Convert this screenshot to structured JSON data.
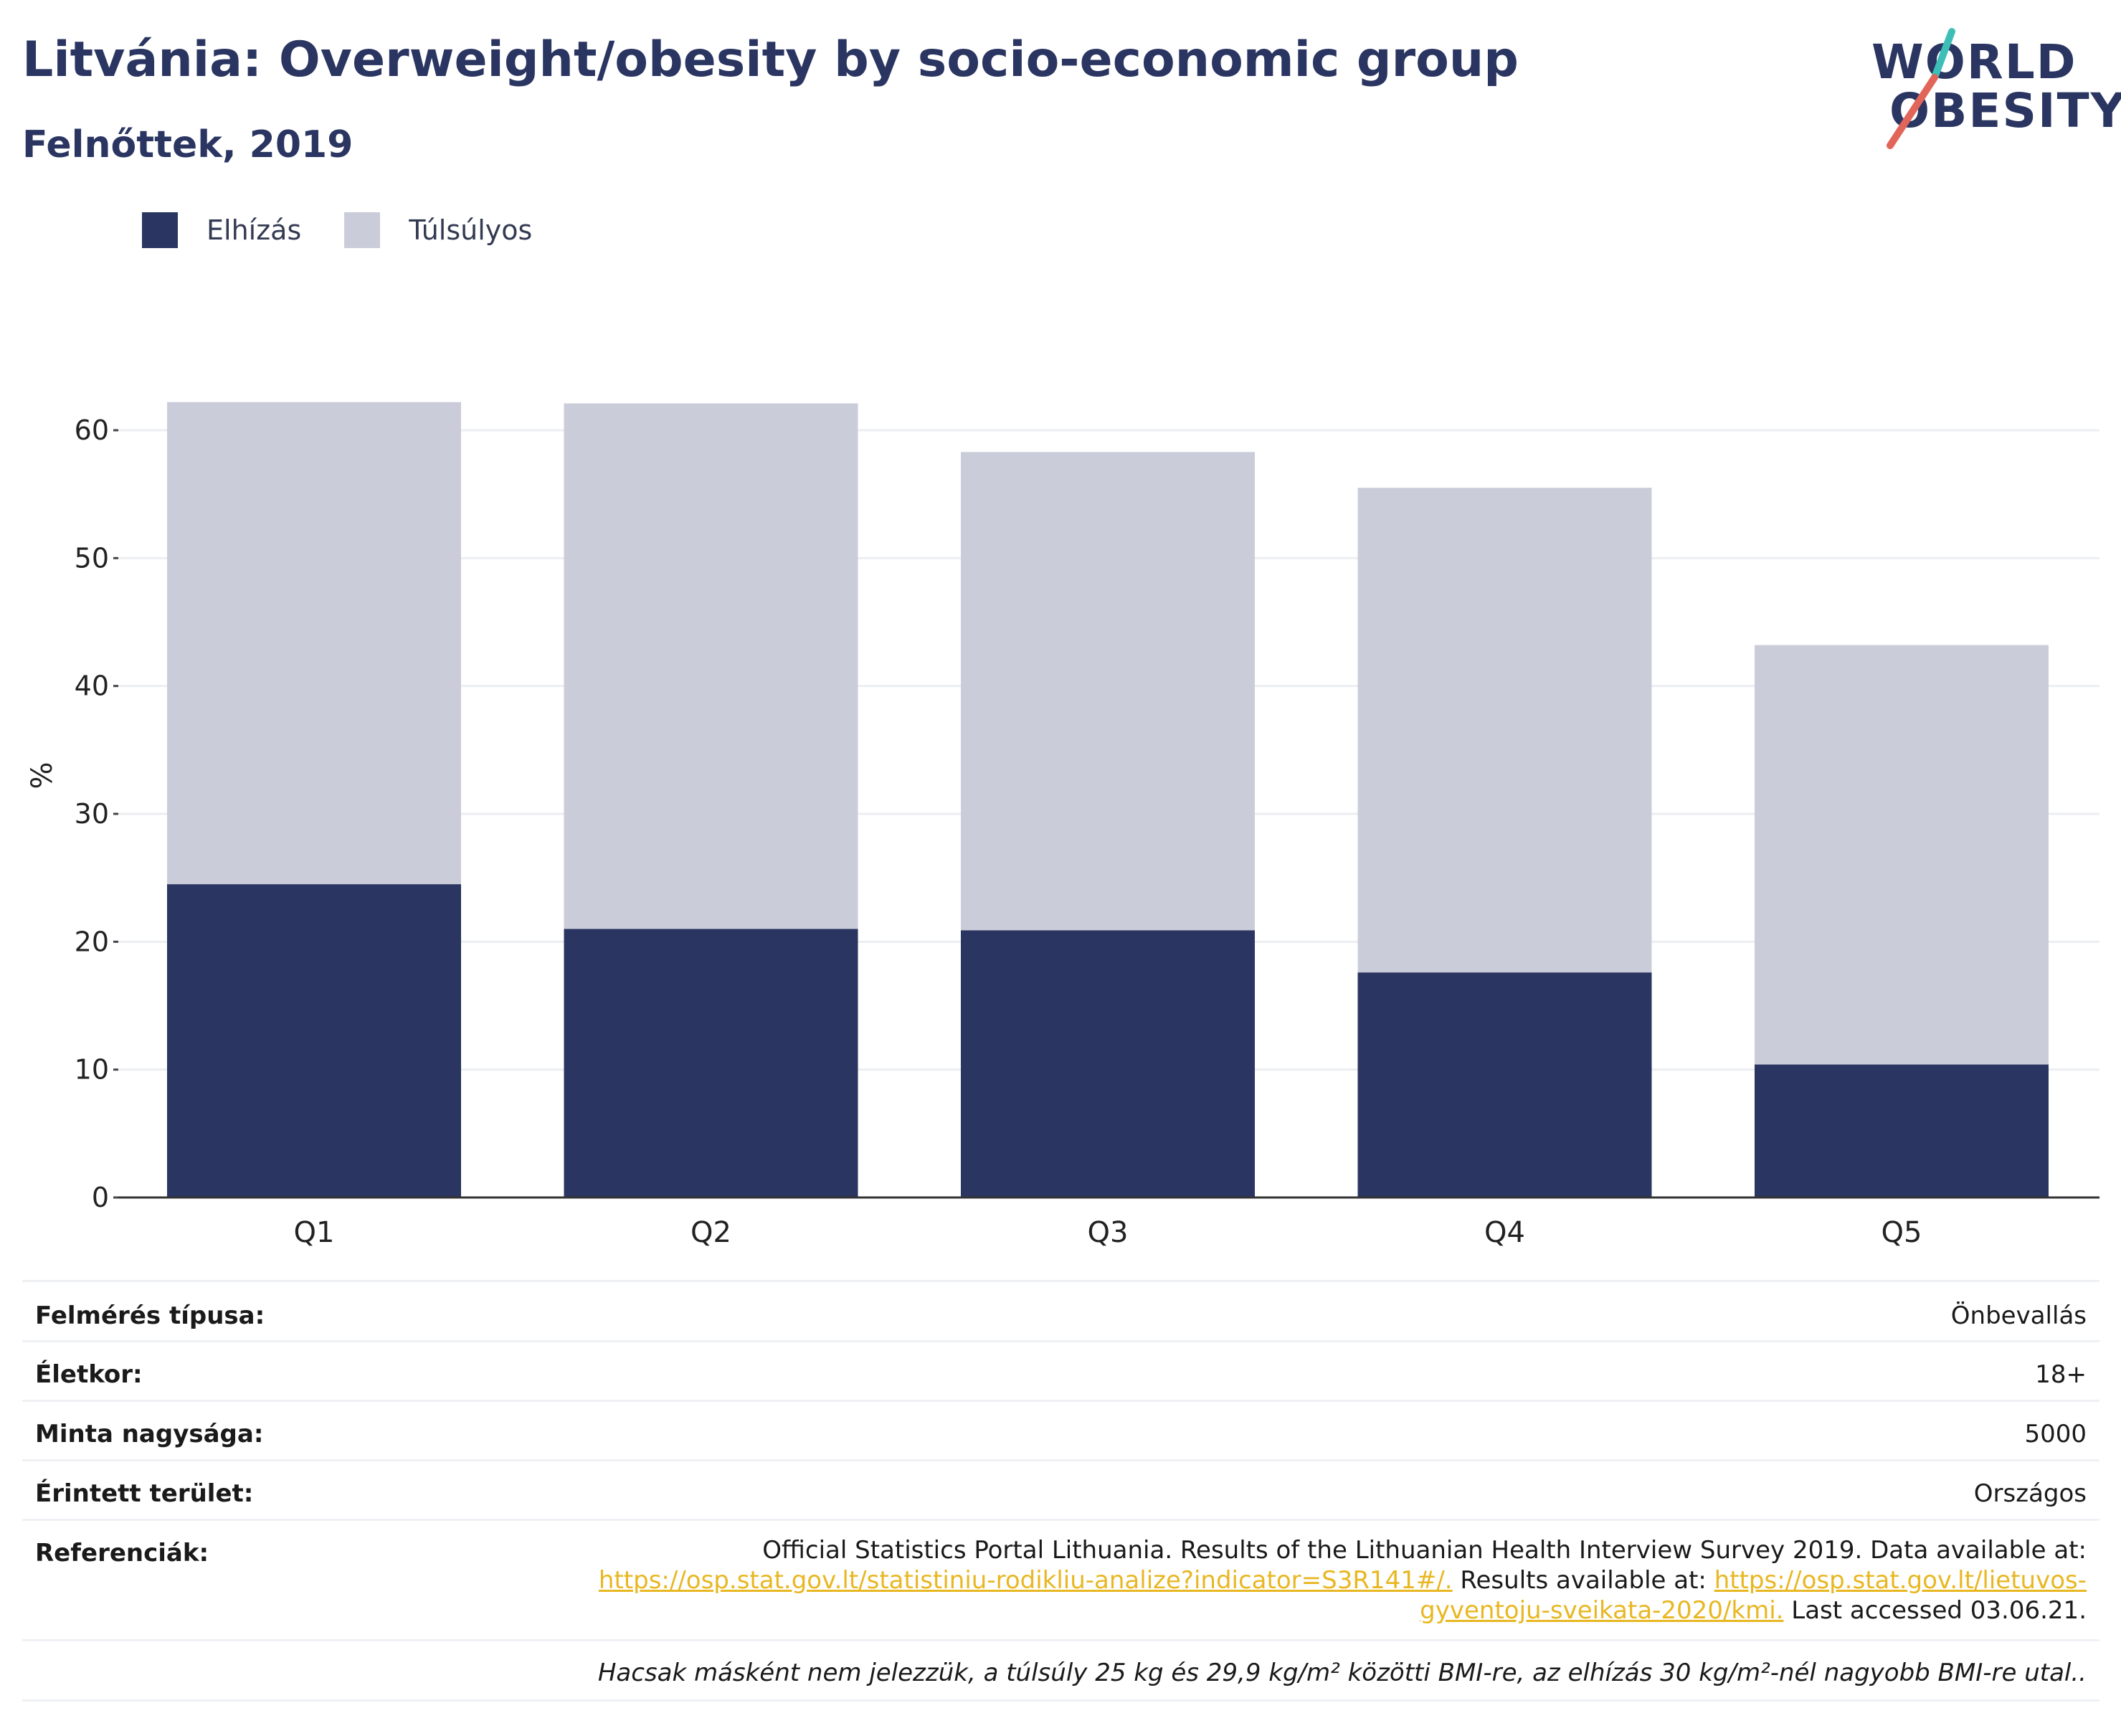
{
  "header": {
    "title": "Litvánia: Overweight/obesity by socio-economic group",
    "subtitle": "Felnőttek, 2019"
  },
  "logo": {
    "line1": "WORLD",
    "line2": "OBESITY",
    "accent_teal": "#3dbfb8",
    "accent_red": "#e2655a"
  },
  "legend": [
    {
      "label": "Elhízás",
      "color": "#2a3561"
    },
    {
      "label": "Túlsúlyos",
      "color": "#cacdd9"
    }
  ],
  "chart_data": {
    "type": "bar",
    "stacked": true,
    "categories": [
      "Q1",
      "Q2",
      "Q3",
      "Q4",
      "Q5"
    ],
    "series": [
      {
        "name": "Elhízás",
        "values": [
          24.5,
          21.0,
          20.9,
          17.6,
          10.4
        ],
        "color": "#2a3561"
      },
      {
        "name": "Túlsúlyos",
        "values": [
          37.7,
          41.1,
          37.4,
          37.9,
          32.8
        ],
        "color": "#cacdd9"
      }
    ],
    "totals": [
      62.2,
      62.1,
      58.3,
      55.5,
      43.2
    ],
    "ylabel": "%",
    "xlabel": "",
    "ylim": [
      0,
      66
    ],
    "yticks": [
      0,
      10,
      20,
      30,
      40,
      50,
      60
    ],
    "grid": true,
    "legend_position": "top-left"
  },
  "meta": {
    "survey_type_label": "Felmérés típusa:",
    "survey_type_value": "Önbevallás",
    "age_label": "Életkor:",
    "age_value": "18+",
    "sample_label": "Minta nagysága:",
    "sample_value": "5000",
    "area_label": "Érintett terület:",
    "area_value": "Országos",
    "ref_label": "Referenciák:",
    "ref_text1": "Official Statistics Portal Lithuania. Results of the Lithuanian Health Interview Survey 2019. Data available at:",
    "ref_link1": "https://osp.stat.gov.lt/statistiniu-rodikliu-analize?indicator=S3R141#/.",
    "ref_text2": " Results available at: ",
    "ref_link2": "https://osp.stat.gov.lt/lietuvos-gyventoju-sveikata-2020/kmi.",
    "ref_text3": " Last accessed 03.06.21.",
    "note": "Hacsak másként nem jelezzük, a túlsúly 25 kg és 29,9 kg/m² közötti BMI-re, az elhízás 30 kg/m²-nél nagyobb BMI-re utal.."
  }
}
